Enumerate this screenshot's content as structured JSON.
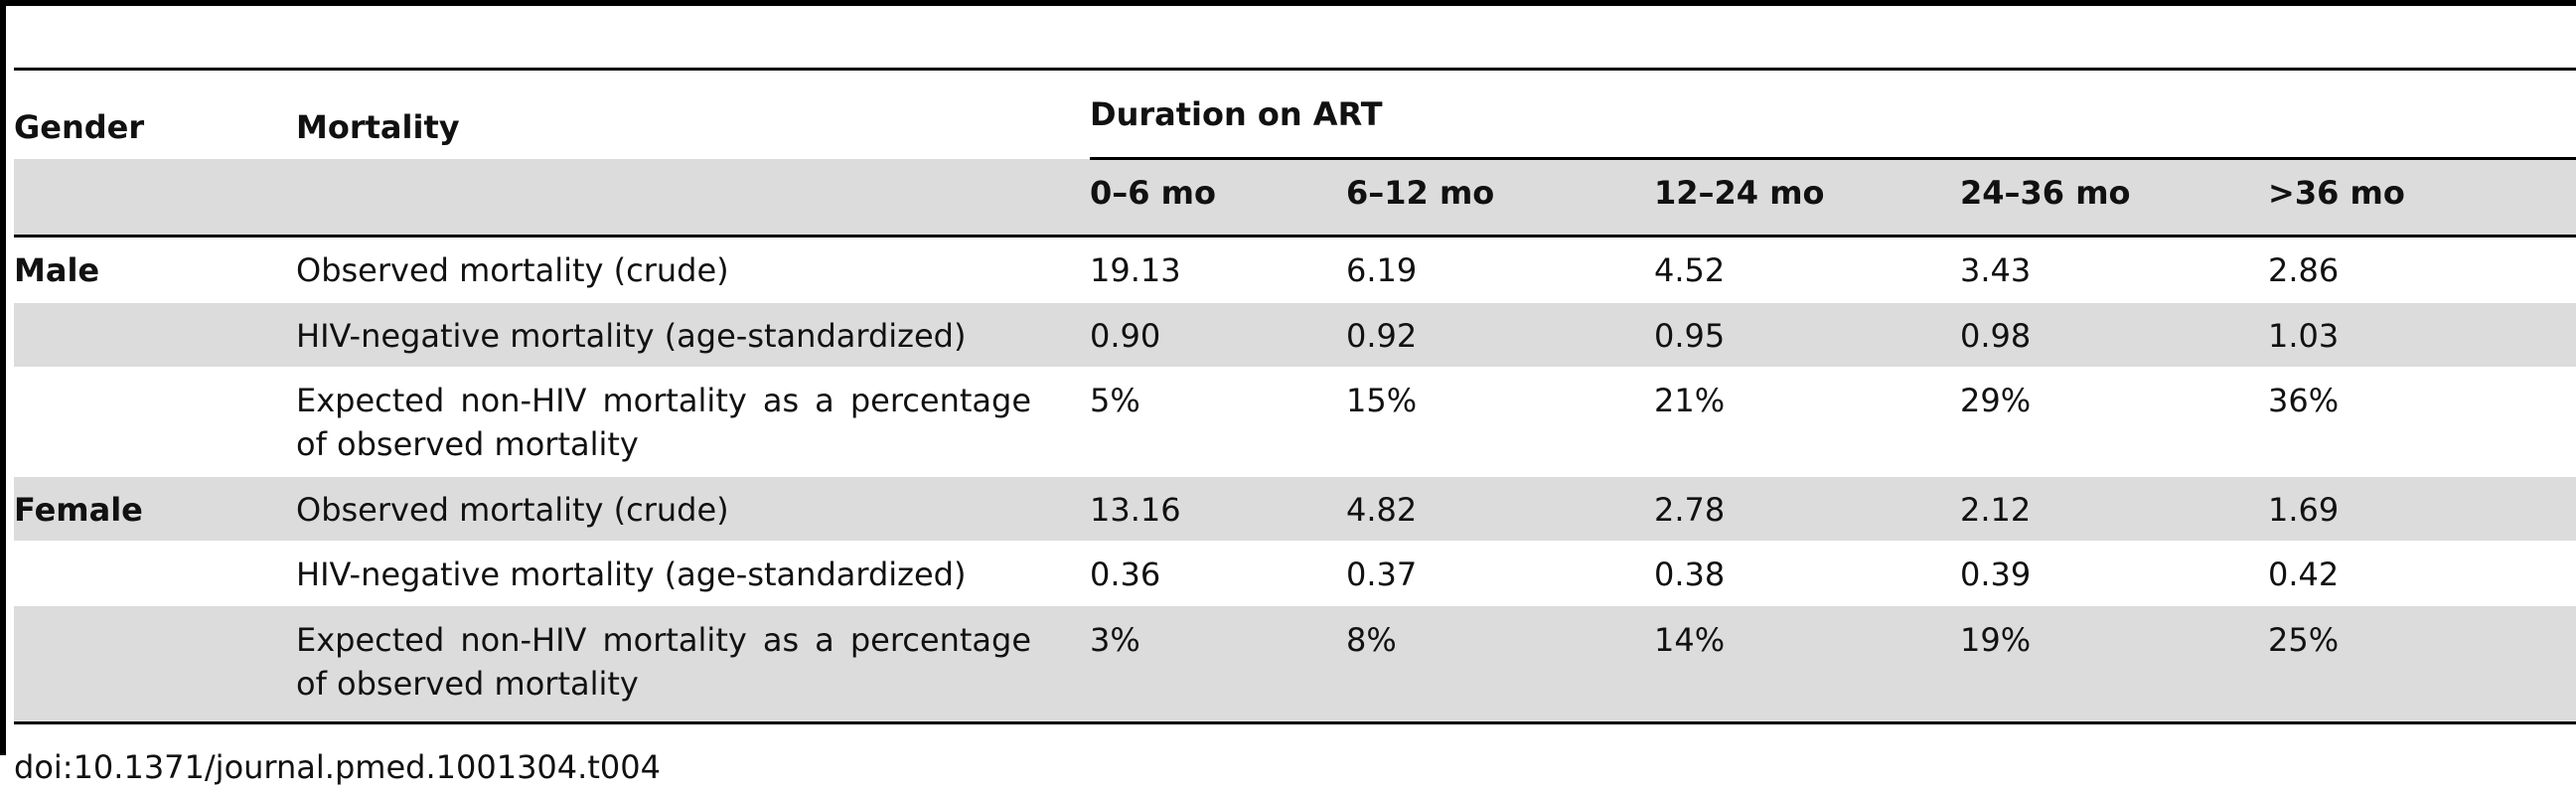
{
  "table": {
    "headers": {
      "gender": "Gender",
      "mortality": "Mortality",
      "duration": "Duration on ART",
      "periods": [
        "0–6 mo",
        "6–12 mo",
        "12–24 mo",
        "24–36 mo",
        ">36 mo"
      ]
    },
    "groups": [
      {
        "gender": "Male",
        "rows": [
          {
            "label": "Observed mortality (crude)",
            "values": [
              "19.13",
              "6.19",
              "4.52",
              "3.43",
              "2.86"
            ]
          },
          {
            "label": "HIV-negative mortality (age-standardized)",
            "values": [
              "0.90",
              "0.92",
              "0.95",
              "0.98",
              "1.03"
            ]
          },
          {
            "label": "Expected non-HIV mortality as a percentage of observed mortality",
            "values": [
              "5%",
              "15%",
              "21%",
              "29%",
              "36%"
            ]
          }
        ]
      },
      {
        "gender": "Female",
        "rows": [
          {
            "label": "Observed mortality (crude)",
            "values": [
              "13.16",
              "4.82",
              "2.78",
              "2.12",
              "1.69"
            ]
          },
          {
            "label": "HIV-negative mortality (age-standardized)",
            "values": [
              "0.36",
              "0.37",
              "0.38",
              "0.39",
              "0.42"
            ]
          },
          {
            "label": "Expected non-HIV mortality as a percentage of observed mortality",
            "values": [
              "3%",
              "8%",
              "14%",
              "19%",
              "25%"
            ]
          }
        ]
      }
    ]
  },
  "footer": {
    "doi": "doi:10.1371/journal.pmed.1001304.t004"
  }
}
